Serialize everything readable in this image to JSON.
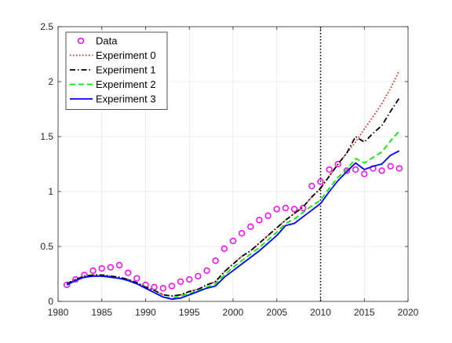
{
  "chart_data": {
    "type": "line",
    "title": "",
    "xlabel": "",
    "ylabel": "",
    "xlim": [
      1980,
      2020
    ],
    "ylim": [
      0,
      2.5
    ],
    "xticks": [
      1980,
      1985,
      1990,
      1995,
      2000,
      2005,
      2010,
      2015,
      2020
    ],
    "xtick_labels": [
      "1980",
      "1985",
      "1990",
      "1995",
      "2000",
      "2005",
      "2010",
      "2015",
      "2020"
    ],
    "yticks": [
      0,
      0.5,
      1,
      1.5,
      2,
      2.5
    ],
    "ytick_labels": [
      "0",
      "0.5",
      "1",
      "1.5",
      "2",
      "2.5"
    ],
    "grid": true,
    "legend_position": "top-left",
    "vertical_line": {
      "x": 2010,
      "style": "dotted",
      "color": "#000000"
    },
    "series": [
      {
        "name": "Data",
        "style": "markers",
        "marker": "circle",
        "color": "#ff00ff",
        "x": [
          1981,
          1982,
          1983,
          1984,
          1985,
          1986,
          1987,
          1988,
          1989,
          1990,
          1991,
          1992,
          1993,
          1994,
          1995,
          1996,
          1997,
          1998,
          1999,
          2000,
          2001,
          2002,
          2003,
          2004,
          2005,
          2006,
          2007,
          2008,
          2009,
          2010,
          2011,
          2012,
          2013,
          2014,
          2015,
          2016,
          2017,
          2018,
          2019
        ],
        "y": [
          0.15,
          0.2,
          0.24,
          0.28,
          0.3,
          0.31,
          0.33,
          0.26,
          0.21,
          0.15,
          0.13,
          0.12,
          0.14,
          0.18,
          0.2,
          0.23,
          0.28,
          0.37,
          0.48,
          0.55,
          0.62,
          0.68,
          0.74,
          0.78,
          0.84,
          0.85,
          0.84,
          0.85,
          1.05,
          1.09,
          1.2,
          1.25,
          1.19,
          1.2,
          1.16,
          1.21,
          1.19,
          1.23,
          1.21
        ]
      },
      {
        "name": "Experiment 0",
        "style": "dotted",
        "color": "#e31a1c",
        "x": [
          1981,
          1982,
          1983,
          1984,
          1985,
          1986,
          1987,
          1988,
          1989,
          1990,
          1991,
          1992,
          1993,
          1994,
          1995,
          1996,
          1997,
          1998,
          1999,
          2000,
          2001,
          2002,
          2003,
          2004,
          2005,
          2006,
          2007,
          2008,
          2009,
          2010,
          2011,
          2012,
          2013,
          2014,
          2015,
          2016,
          2017,
          2018,
          2019
        ],
        "y": [
          0.16,
          0.2,
          0.23,
          0.24,
          0.24,
          0.23,
          0.22,
          0.2,
          0.17,
          0.13,
          0.1,
          0.06,
          0.05,
          0.06,
          0.09,
          0.11,
          0.15,
          0.18,
          0.27,
          0.34,
          0.41,
          0.46,
          0.53,
          0.6,
          0.67,
          0.74,
          0.8,
          0.86,
          0.95,
          1.03,
          1.14,
          1.25,
          1.35,
          1.45,
          1.57,
          1.68,
          1.8,
          1.94,
          2.1
        ]
      },
      {
        "name": "Experiment 1",
        "style": "dashdot",
        "color": "#000000",
        "x": [
          1981,
          1982,
          1983,
          1984,
          1985,
          1986,
          1987,
          1988,
          1989,
          1990,
          1991,
          1992,
          1993,
          1994,
          1995,
          1996,
          1997,
          1998,
          1999,
          2000,
          2001,
          2002,
          2003,
          2004,
          2005,
          2006,
          2007,
          2008,
          2009,
          2010,
          2011,
          2012,
          2013,
          2014,
          2015,
          2016,
          2017,
          2018,
          2019
        ],
        "y": [
          0.16,
          0.2,
          0.23,
          0.24,
          0.24,
          0.23,
          0.22,
          0.2,
          0.17,
          0.13,
          0.1,
          0.06,
          0.05,
          0.06,
          0.09,
          0.11,
          0.15,
          0.18,
          0.27,
          0.34,
          0.41,
          0.46,
          0.53,
          0.6,
          0.67,
          0.74,
          0.8,
          0.86,
          0.95,
          1.03,
          1.14,
          1.25,
          1.35,
          1.5,
          1.45,
          1.53,
          1.6,
          1.73,
          1.85
        ]
      },
      {
        "name": "Experiment 2",
        "style": "dashed",
        "color": "#00ee00",
        "x": [
          1981,
          1982,
          1983,
          1984,
          1985,
          1986,
          1987,
          1988,
          1989,
          1990,
          1991,
          1992,
          1993,
          1994,
          1995,
          1996,
          1997,
          1998,
          1999,
          2000,
          2001,
          2002,
          2003,
          2004,
          2005,
          2006,
          2007,
          2008,
          2009,
          2010,
          2011,
          2012,
          2013,
          2014,
          2015,
          2016,
          2017,
          2018,
          2019
        ],
        "y": [
          0.15,
          0.19,
          0.22,
          0.23,
          0.23,
          0.22,
          0.21,
          0.19,
          0.16,
          0.12,
          0.08,
          0.04,
          0.03,
          0.05,
          0.07,
          0.1,
          0.13,
          0.16,
          0.24,
          0.31,
          0.37,
          0.43,
          0.49,
          0.56,
          0.63,
          0.71,
          0.75,
          0.81,
          0.87,
          0.92,
          1.03,
          1.13,
          1.2,
          1.3,
          1.26,
          1.31,
          1.36,
          1.46,
          1.55
        ]
      },
      {
        "name": "Experiment 3",
        "style": "solid",
        "color": "#0000ff",
        "x": [
          1981,
          1982,
          1983,
          1984,
          1985,
          1986,
          1987,
          1988,
          1989,
          1990,
          1991,
          1992,
          1993,
          1994,
          1995,
          1996,
          1997,
          1998,
          1999,
          2000,
          2001,
          2002,
          2003,
          2004,
          2005,
          2006,
          2007,
          2008,
          2009,
          2010,
          2011,
          2012,
          2013,
          2014,
          2015,
          2016,
          2017,
          2018,
          2019
        ],
        "y": [
          0.15,
          0.19,
          0.22,
          0.23,
          0.23,
          0.22,
          0.21,
          0.19,
          0.16,
          0.12,
          0.08,
          0.04,
          0.02,
          0.03,
          0.06,
          0.09,
          0.12,
          0.14,
          0.22,
          0.28,
          0.34,
          0.4,
          0.46,
          0.53,
          0.6,
          0.69,
          0.71,
          0.77,
          0.83,
          0.89,
          1.0,
          1.1,
          1.18,
          1.26,
          1.2,
          1.23,
          1.25,
          1.33,
          1.37
        ]
      }
    ]
  }
}
